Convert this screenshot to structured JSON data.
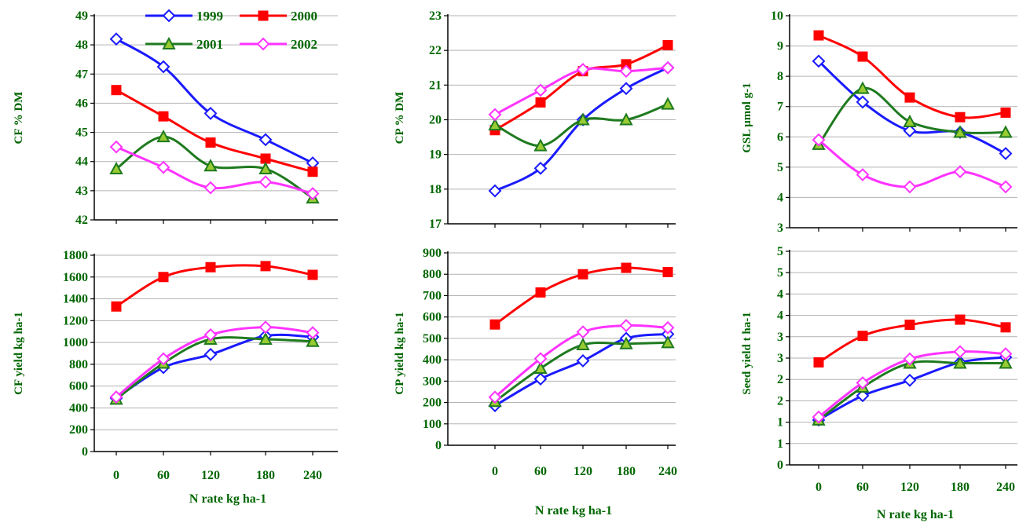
{
  "colors": {
    "series_1999": "#1a1aff",
    "series_2000": "#ff0000",
    "series_2001": "#1f7a1f",
    "series_2002": "#ff33ff",
    "axis": "#000000",
    "grid": "#b3b3b3",
    "text": "#006600"
  },
  "legend": {
    "entries": [
      {
        "name": "1999",
        "marker": "diamond-open"
      },
      {
        "name": "2000",
        "marker": "square-filled"
      },
      {
        "name": "2001",
        "marker": "triangle-filled"
      },
      {
        "name": "2002",
        "marker": "diamond-open"
      }
    ]
  },
  "chart_data": [
    {
      "type": "line",
      "ylabel": "CF % DM",
      "xlabel": "",
      "x": [
        0,
        60,
        120,
        180,
        240
      ],
      "x_tick_labels": [
        "",
        "",
        "",
        "",
        ""
      ],
      "ylim": [
        42,
        49
      ],
      "y_ticks": [
        42,
        43,
        44,
        45,
        46,
        47,
        48,
        49
      ],
      "grid": true,
      "legend": "top",
      "series": [
        {
          "name": "1999",
          "values": [
            48.2,
            47.25,
            45.65,
            44.75,
            43.95
          ]
        },
        {
          "name": "2000",
          "values": [
            46.45,
            45.55,
            44.65,
            44.1,
            43.65
          ]
        },
        {
          "name": "2001",
          "values": [
            43.75,
            44.85,
            43.85,
            43.75,
            42.75
          ]
        },
        {
          "name": "2002",
          "values": [
            44.5,
            43.8,
            43.1,
            43.3,
            42.9
          ]
        }
      ]
    },
    {
      "type": "line",
      "ylabel": "CP % DM",
      "xlabel": "",
      "x": [
        0,
        60,
        120,
        180,
        240
      ],
      "x_tick_labels": [
        "",
        "",
        "",
        "",
        ""
      ],
      "ylim": [
        17,
        23
      ],
      "y_ticks": [
        17,
        18,
        19,
        20,
        21,
        22,
        23
      ],
      "grid": true,
      "series": [
        {
          "name": "1999",
          "values": [
            17.95,
            18.6,
            20.0,
            20.9,
            21.5
          ]
        },
        {
          "name": "2000",
          "values": [
            19.7,
            20.5,
            21.4,
            21.6,
            22.15
          ]
        },
        {
          "name": "2001",
          "values": [
            19.85,
            19.25,
            20.0,
            20.0,
            20.45
          ]
        },
        {
          "name": "2002",
          "values": [
            20.15,
            20.85,
            21.45,
            21.4,
            21.5
          ]
        }
      ]
    },
    {
      "type": "line",
      "ylabel": "GSL μmol g-1",
      "xlabel": "",
      "x": [
        0,
        60,
        120,
        180,
        240
      ],
      "x_tick_labels": [
        "",
        "",
        "",
        "",
        ""
      ],
      "ylim": [
        3,
        10
      ],
      "y_ticks": [
        3,
        4,
        5,
        6,
        7,
        8,
        9,
        10
      ],
      "grid": true,
      "series": [
        {
          "name": "1999",
          "values": [
            8.5,
            7.15,
            6.2,
            6.15,
            5.45
          ]
        },
        {
          "name": "2000",
          "values": [
            9.35,
            8.65,
            7.3,
            6.65,
            6.8
          ]
        },
        {
          "name": "2001",
          "values": [
            5.75,
            7.6,
            6.5,
            6.15,
            6.15
          ]
        },
        {
          "name": "2002",
          "values": [
            5.9,
            4.75,
            4.35,
            4.85,
            4.35
          ]
        }
      ]
    },
    {
      "type": "line",
      "ylabel": "CF yield kg ha-1",
      "xlabel": "N rate kg ha-1",
      "x": [
        0,
        60,
        120,
        180,
        240
      ],
      "x_tick_labels": [
        "0",
        "60",
        "120",
        "180",
        "240"
      ],
      "ylim": [
        0,
        1800
      ],
      "y_ticks": [
        0,
        200,
        400,
        600,
        800,
        1000,
        1200,
        1400,
        1600,
        1800
      ],
      "grid": true,
      "series": [
        {
          "name": "1999",
          "values": [
            490,
            770,
            890,
            1060,
            1050
          ]
        },
        {
          "name": "2000",
          "values": [
            1330,
            1600,
            1690,
            1700,
            1620
          ]
        },
        {
          "name": "2001",
          "values": [
            480,
            810,
            1030,
            1030,
            1010
          ]
        },
        {
          "name": "2002",
          "values": [
            500,
            850,
            1070,
            1140,
            1090
          ]
        }
      ]
    },
    {
      "type": "line",
      "ylabel": "CP yield kg ha-1",
      "xlabel": "N rate kg ha-1",
      "x": [
        0,
        60,
        120,
        180,
        240
      ],
      "x_tick_labels": [
        "0",
        "60",
        "120",
        "180",
        "240"
      ],
      "ylim": [
        0,
        900
      ],
      "y_ticks": [
        0,
        100,
        200,
        300,
        400,
        500,
        600,
        700,
        800,
        900
      ],
      "grid": true,
      "series": [
        {
          "name": "1999",
          "values": [
            185,
            310,
            395,
            500,
            520
          ]
        },
        {
          "name": "2000",
          "values": [
            565,
            715,
            800,
            830,
            810
          ]
        },
        {
          "name": "2001",
          "values": [
            205,
            360,
            470,
            475,
            480
          ]
        },
        {
          "name": "2002",
          "values": [
            225,
            405,
            530,
            560,
            550
          ]
        }
      ]
    },
    {
      "type": "line",
      "ylabel": "Seed yield t ha-1",
      "xlabel": "N rate kg ha-1",
      "x": [
        0,
        60,
        120,
        180,
        240
      ],
      "x_tick_labels": [
        "0",
        "60",
        "120",
        "180",
        "240"
      ],
      "ylim": [
        0,
        5
      ],
      "y_ticks": [
        0,
        0.5,
        1,
        1.5,
        2,
        2.5,
        3,
        3.5,
        4,
        4.5,
        5
      ],
      "y_tick_labels": [
        "0",
        "1",
        "1",
        "2",
        "2",
        "3",
        "3",
        "4",
        "4",
        "5",
        "5"
      ],
      "grid": true,
      "series": [
        {
          "name": "1999",
          "values": [
            1.05,
            1.62,
            1.98,
            2.4,
            2.52
          ]
        },
        {
          "name": "2000",
          "values": [
            2.4,
            3.02,
            3.28,
            3.4,
            3.22
          ]
        },
        {
          "name": "2001",
          "values": [
            1.05,
            1.82,
            2.38,
            2.38,
            2.38
          ]
        },
        {
          "name": "2002",
          "values": [
            1.12,
            1.92,
            2.48,
            2.65,
            2.6
          ]
        }
      ]
    }
  ]
}
